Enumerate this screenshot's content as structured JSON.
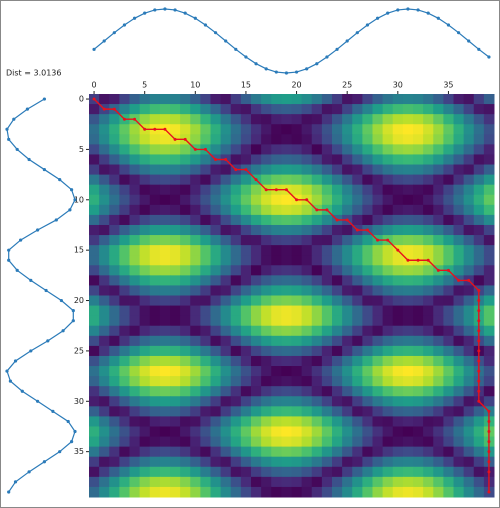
{
  "chart_data": {
    "type": "dtw",
    "title": "Dist = 3.0136",
    "cmap": "viridis",
    "series": [
      {
        "color": "#2b7bb9",
        "values": [
          -0.26,
          0,
          0.26,
          0.5,
          0.71,
          0.87,
          0.97,
          1,
          0.97,
          0.87,
          0.71,
          0.5,
          0.26,
          0,
          -0.26,
          -0.5,
          -0.71,
          -0.87,
          -0.97,
          -1,
          -0.97,
          -0.87,
          -0.71,
          -0.5,
          -0.26,
          0,
          0.26,
          0.5,
          0.71,
          0.87,
          0.97,
          1,
          0.97,
          0.87,
          0.71,
          0.5,
          0.26,
          0,
          -0.26,
          -0.5
        ]
      },
      {
        "color": "#2b7bb9",
        "values": [
          0.1,
          -0.4,
          -0.8,
          -1,
          -0.95,
          -0.7,
          -0.35,
          0.1,
          0.55,
          0.9,
          1,
          0.85,
          0.45,
          -0.1,
          -0.6,
          -0.95,
          -0.95,
          -0.7,
          -0.3,
          0.15,
          0.6,
          0.95,
          0.95,
          0.65,
          0.2,
          -0.3,
          -0.75,
          -1,
          -0.9,
          -0.55,
          -0.1,
          0.35,
          0.8,
          1,
          0.9,
          0.55,
          0.1,
          -0.35,
          -0.75,
          -0.95
        ]
      }
    ],
    "xlim": [
      -0.5,
      39.5
    ],
    "ylim": [
      -0.5,
      39.5
    ],
    "xticks": [
      0,
      5,
      10,
      15,
      20,
      25,
      30,
      35
    ],
    "yticks": [
      0,
      5,
      10,
      15,
      20,
      25,
      30,
      35
    ],
    "path_color": "#e8101c",
    "path": {
      "x": [
        0,
        1,
        2,
        3,
        4,
        5,
        6,
        7,
        8,
        9,
        10,
        11,
        12,
        13,
        14,
        15,
        16,
        17,
        18,
        19,
        20,
        21,
        22,
        23,
        24,
        25,
        26,
        27,
        28,
        29,
        30,
        31,
        32,
        33,
        34,
        35,
        36,
        37,
        38,
        38,
        38,
        38,
        38,
        38,
        38,
        38,
        38,
        38,
        38,
        38,
        39,
        39,
        39,
        39,
        39,
        39,
        39,
        39
      ],
      "y": [
        0,
        1,
        1,
        2,
        2,
        3,
        3,
        3,
        4,
        4,
        5,
        5,
        6,
        6,
        7,
        7,
        8,
        9,
        9,
        9,
        10,
        10,
        11,
        11,
        12,
        12,
        13,
        13,
        14,
        14,
        15,
        16,
        16,
        16,
        17,
        17,
        18,
        18,
        19,
        20,
        21,
        22,
        23,
        24,
        25,
        26,
        27,
        28,
        29,
        30,
        31,
        32,
        33,
        34,
        35,
        36,
        37,
        39
      ]
    }
  }
}
